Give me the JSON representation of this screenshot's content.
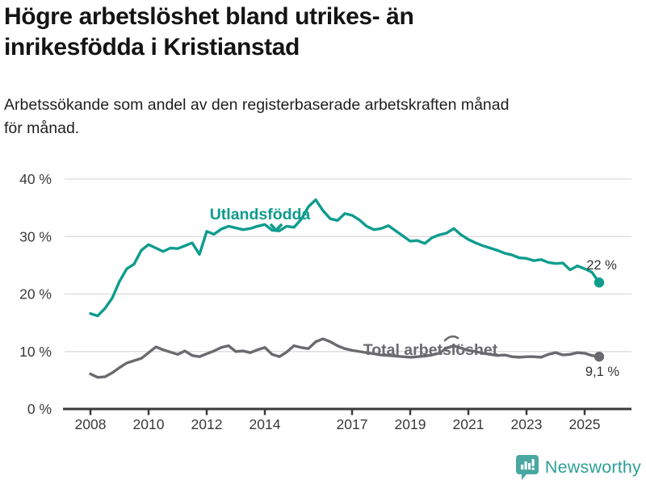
{
  "header": {
    "title_line1": "Högre arbetslöshet bland utrikes- än",
    "title_line2": "inrikesfödda i Kristianstad",
    "subtitle_line1": "Arbetssökande som andel av den registerbaserade arbetskraften månad",
    "subtitle_line2": "för månad."
  },
  "footer": {
    "brand_name": "Newsworthy",
    "brand_color": "#2d9f97",
    "logo_color": "#4aa7a1"
  },
  "chart_data": {
    "type": "line",
    "title": "Högre arbetslöshet bland utrikes- än inrikesfödda i Kristianstad",
    "subtitle": "Arbetssökande som andel av den registerbaserade arbetskraften månad för månad.",
    "x_unit": "decimal_year",
    "xlim": [
      2008,
      2025.6
    ],
    "ylim": [
      0,
      40
    ],
    "grid": "horizontal",
    "yticks": [
      {
        "v": 0,
        "label": "0 %"
      },
      {
        "v": 10,
        "label": "10 %"
      },
      {
        "v": 20,
        "label": "20 %"
      },
      {
        "v": 30,
        "label": "30 %"
      },
      {
        "v": 40,
        "label": "40 %"
      }
    ],
    "xticks": [
      {
        "v": 2008,
        "label": "2008"
      },
      {
        "v": 2010,
        "label": "2010"
      },
      {
        "v": 2012,
        "label": "2012"
      },
      {
        "v": 2014,
        "label": "2014"
      },
      {
        "v": 2017,
        "label": "2017"
      },
      {
        "v": 2019,
        "label": "2019"
      },
      {
        "v": 2021,
        "label": "2021"
      },
      {
        "v": 2023,
        "label": "2023"
      },
      {
        "v": 2025,
        "label": "2025"
      }
    ],
    "x": [
      2008.0,
      2008.25,
      2008.5,
      2008.75,
      2009.0,
      2009.25,
      2009.5,
      2009.75,
      2010.0,
      2010.25,
      2010.5,
      2010.75,
      2011.0,
      2011.25,
      2011.5,
      2011.75,
      2012.0,
      2012.25,
      2012.5,
      2012.75,
      2013.0,
      2013.25,
      2013.5,
      2013.75,
      2014.0,
      2014.25,
      2014.5,
      2014.75,
      2015.0,
      2015.25,
      2015.5,
      2015.75,
      2016.0,
      2016.25,
      2016.5,
      2016.75,
      2017.0,
      2017.25,
      2017.5,
      2017.75,
      2018.0,
      2018.25,
      2018.5,
      2018.75,
      2019.0,
      2019.25,
      2019.5,
      2019.75,
      2020.0,
      2020.25,
      2020.5,
      2020.75,
      2021.0,
      2021.25,
      2021.5,
      2021.75,
      2022.0,
      2022.25,
      2022.5,
      2022.75,
      2023.0,
      2023.25,
      2023.5,
      2023.75,
      2024.0,
      2024.25,
      2024.5,
      2024.75,
      2025.0,
      2025.25,
      2025.5
    ],
    "series": [
      {
        "name": "Utlandsfödda",
        "color": "#0e9c8d",
        "end_label": "22 %",
        "values": [
          16.6,
          16.2,
          17.5,
          19.3,
          22.2,
          24.4,
          25.2,
          27.6,
          28.6,
          28.0,
          27.4,
          28.0,
          27.9,
          28.4,
          28.9,
          26.9,
          30.9,
          30.4,
          31.3,
          31.8,
          31.5,
          31.2,
          31.4,
          31.8,
          32.1,
          31.1,
          31.0,
          31.8,
          31.6,
          33.0,
          35.2,
          36.4,
          34.5,
          33.1,
          32.8,
          34.0,
          33.7,
          32.9,
          31.8,
          31.2,
          31.4,
          31.9,
          31.0,
          30.1,
          29.2,
          29.3,
          28.8,
          29.8,
          30.3,
          30.6,
          31.4,
          30.3,
          29.5,
          28.9,
          28.4,
          28.0,
          27.6,
          27.1,
          26.8,
          26.3,
          26.2,
          25.8,
          26.0,
          25.5,
          25.3,
          25.4,
          24.2,
          24.9,
          24.4,
          23.8,
          22.0
        ]
      },
      {
        "name": "Total arbetslöshet",
        "color": "#6a6a6f",
        "end_label": "9,1 %",
        "values": [
          6.1,
          5.5,
          5.6,
          6.3,
          7.2,
          8.0,
          8.4,
          8.8,
          9.8,
          10.8,
          10.3,
          9.9,
          9.5,
          10.1,
          9.3,
          9.1,
          9.6,
          10.1,
          10.7,
          11.0,
          10.0,
          10.1,
          9.8,
          10.3,
          10.7,
          9.5,
          9.1,
          9.9,
          11.0,
          10.7,
          10.5,
          11.7,
          12.2,
          11.7,
          11.0,
          10.5,
          10.2,
          10.0,
          9.8,
          9.6,
          9.4,
          9.3,
          9.2,
          9.1,
          9.0,
          9.1,
          9.2,
          9.4,
          9.7,
          10.6,
          11.0,
          10.6,
          10.2,
          10.0,
          9.7,
          9.5,
          9.3,
          9.4,
          9.1,
          9.0,
          9.1,
          9.1,
          9.0,
          9.5,
          9.8,
          9.4,
          9.5,
          9.8,
          9.7,
          9.3,
          9.1
        ]
      }
    ]
  }
}
